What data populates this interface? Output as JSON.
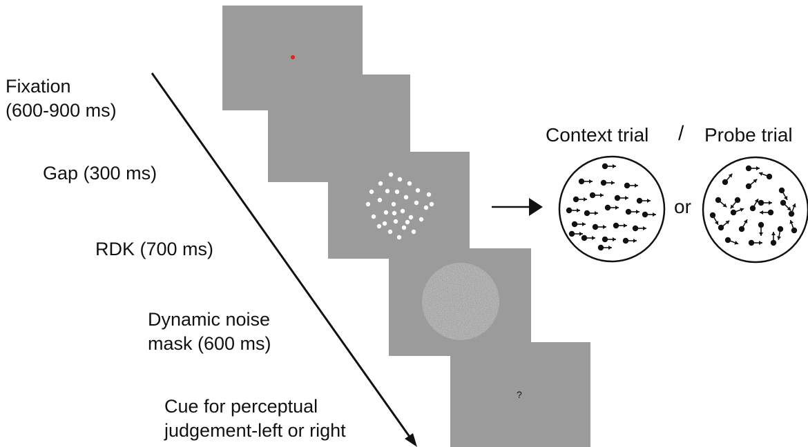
{
  "stages": [
    {
      "label_lines": [
        "Fixation",
        "(600-900 ms)"
      ],
      "screen": "fixation"
    },
    {
      "label_lines": [
        "Gap (300 ms)"
      ],
      "screen": "blank"
    },
    {
      "label_lines": [
        "RDK (700 ms)"
      ],
      "screen": "rdk"
    },
    {
      "label_lines": [
        "Dynamic noise",
        "mask (600 ms)"
      ],
      "screen": "noise"
    },
    {
      "label_lines": [
        "Cue for perceptual",
        "judgement-left or right"
      ],
      "screen": "cue"
    }
  ],
  "cue_symbol": "?",
  "trial_types": {
    "context_label": "Context trial",
    "separator": "/",
    "probe_label": "Probe trial",
    "or_label": "or"
  },
  "colors": {
    "screen_gray": "#9b9b9b",
    "fixation_dot": "#e0201a",
    "rdk_dot": "#ffffff",
    "ink": "#111111"
  }
}
